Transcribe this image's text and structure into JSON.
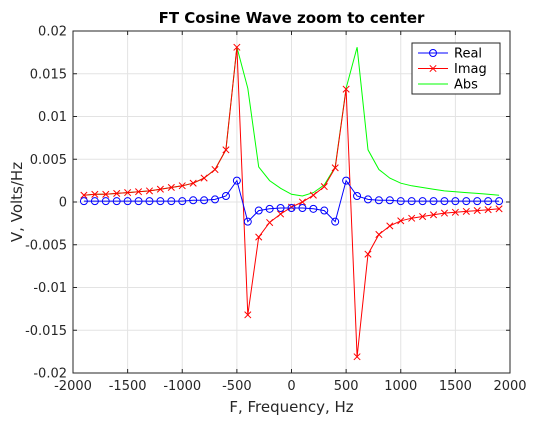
{
  "chart_data": {
    "type": "line",
    "title": "FT Cosine Wave zoom to center",
    "xlabel": "F, Frequency, Hz",
    "ylabel": "V, Volts/Hz",
    "xlim": [
      -2000,
      2000
    ],
    "ylim": [
      -0.02,
      0.02
    ],
    "grid": true,
    "legend_position": "top-right",
    "x_ticks": [
      -2000,
      -1500,
      -1000,
      -500,
      0,
      500,
      1000,
      1500,
      2000
    ],
    "x_tick_labels": [
      "-2000",
      "-1500",
      "-1000",
      "-500",
      "0",
      "500",
      "1000",
      "1500",
      "2000"
    ],
    "y_ticks": [
      0.02,
      0.015,
      0.01,
      0.005,
      0,
      -0.005,
      -0.01,
      -0.015,
      -0.02
    ],
    "y_tick_labels": [
      "0.02",
      "0.015",
      "0.01",
      "0.005",
      "0",
      "-0.005",
      "-0.01",
      "-0.015",
      "-0.02"
    ],
    "x": [
      -1900,
      -1800,
      -1700,
      -1600,
      -1500,
      -1400,
      -1300,
      -1200,
      -1100,
      -1000,
      -900,
      -800,
      -700,
      -600,
      -500,
      -400,
      -300,
      -200,
      -100,
      0,
      100,
      200,
      300,
      400,
      500,
      600,
      700,
      800,
      900,
      1000,
      1100,
      1200,
      1300,
      1400,
      1500,
      1600,
      1700,
      1800,
      1900
    ],
    "series": [
      {
        "name": "Real",
        "color": "#0000ff",
        "marker": "circle",
        "values": [
          0.0001,
          0.0001,
          0.0001,
          0.0001,
          0.0001,
          0.0001,
          0.0001,
          0.0001,
          0.0001,
          0.0001,
          0.0002,
          0.0002,
          0.0003,
          0.0007,
          0.0025,
          -0.0023,
          -0.001,
          -0.0008,
          -0.0007,
          -0.0007,
          -0.0007,
          -0.0008,
          -0.001,
          -0.0023,
          0.0025,
          0.0007,
          0.0003,
          0.0002,
          0.0002,
          0.0001,
          0.0001,
          0.0001,
          0.0001,
          0.0001,
          0.0001,
          0.0001,
          0.0001,
          0.0001,
          0.0001
        ]
      },
      {
        "name": "Imag",
        "color": "#ff0000",
        "marker": "x",
        "values": [
          0.0008,
          0.0009,
          0.0009,
          0.001,
          0.0011,
          0.0012,
          0.0013,
          0.0015,
          0.0017,
          0.0019,
          0.0022,
          0.0028,
          0.0038,
          0.0061,
          0.0181,
          -0.0132,
          -0.0041,
          -0.0024,
          -0.0014,
          -0.0006,
          0.0,
          0.0008,
          0.0018,
          0.004,
          0.0132,
          -0.0181,
          -0.0061,
          -0.0038,
          -0.0028,
          -0.0022,
          -0.0019,
          -0.0017,
          -0.0015,
          -0.0013,
          -0.0012,
          -0.0011,
          -0.001,
          -0.0009,
          -0.0008
        ]
      },
      {
        "name": "Abs",
        "color": "#00ff00",
        "marker": "none",
        "values": [
          0.0008,
          0.0009,
          0.0009,
          0.001,
          0.0011,
          0.0012,
          0.0013,
          0.0015,
          0.0017,
          0.0019,
          0.0022,
          0.0028,
          0.0038,
          0.0061,
          0.0181,
          0.0133,
          0.0041,
          0.0025,
          0.0016,
          0.0009,
          0.0007,
          0.0011,
          0.002,
          0.0041,
          0.0133,
          0.0181,
          0.0061,
          0.0038,
          0.0028,
          0.0022,
          0.0019,
          0.0017,
          0.0015,
          0.0013,
          0.0012,
          0.0011,
          0.001,
          0.0009,
          0.0008
        ]
      }
    ]
  }
}
